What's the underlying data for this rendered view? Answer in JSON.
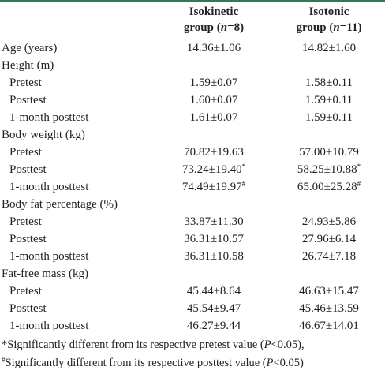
{
  "table": {
    "columns": [
      {
        "line1": "Isokinetic",
        "line2": [
          {
            "text": "group ("
          },
          {
            "text": "n",
            "italic": true
          },
          {
            "text": "=8)"
          }
        ]
      },
      {
        "line1": "Isotonic",
        "line2": [
          {
            "text": "group ("
          },
          {
            "text": "n",
            "italic": true
          },
          {
            "text": "=11)"
          }
        ]
      }
    ],
    "items": [
      {
        "label": "Age (years)",
        "values": [
          "14.36±1.06",
          "14.82±1.60"
        ]
      },
      {
        "label": "Height (m)",
        "rows": [
          {
            "label": "Pretest",
            "values": [
              "1.59±0.07",
              "1.58±0.11"
            ]
          },
          {
            "label": "Posttest",
            "values": [
              "1.60±0.07",
              "1.59±0.11"
            ]
          },
          {
            "label": "1-month posttest",
            "values": [
              "1.61±0.07",
              "1.59±0.11"
            ]
          }
        ]
      },
      {
        "label": "Body weight (kg)",
        "rows": [
          {
            "label": "Pretest",
            "values": [
              "70.82±19.63",
              "57.00±10.79"
            ]
          },
          {
            "label": "Posttest",
            "values": [
              {
                "text": "73.24±19.40",
                "sup": "*"
              },
              {
                "text": "58.25±10.88",
                "sup": "*"
              }
            ]
          },
          {
            "label": "1-month posttest",
            "values": [
              {
                "text": "74.49±19.97",
                "sup": "#"
              },
              {
                "text": "65.00±25.28",
                "sup": "#"
              }
            ]
          }
        ]
      },
      {
        "label": "Body fat percentage (%)",
        "rows": [
          {
            "label": "Pretest",
            "values": [
              "33.87±11.30",
              "24.93±5.86"
            ]
          },
          {
            "label": "Posttest",
            "values": [
              "36.31±10.57",
              "27.96±6.14"
            ]
          },
          {
            "label": "1-month posttest",
            "values": [
              "36.31±10.58",
              "26.74±7.18"
            ]
          }
        ]
      },
      {
        "label": "Fat-free mass (kg)",
        "rows": [
          {
            "label": "Pretest",
            "values": [
              "45.44±8.64",
              "46.63±15.47"
            ]
          },
          {
            "label": "Posttest",
            "values": [
              "45.54±9.47",
              "45.46±13.59"
            ]
          },
          {
            "label": "1-month posttest",
            "values": [
              "46.27±9.44",
              "46.67±14.01"
            ]
          }
        ]
      }
    ],
    "footnotes": [
      [
        {
          "text": "*Significantly different from its respective pretest value ("
        },
        {
          "text": "P",
          "italic": true
        },
        {
          "text": "<0.05),"
        }
      ],
      [
        {
          "text": "#",
          "sup": true
        },
        {
          "text": "Significantly different from its respective posttest value ("
        },
        {
          "text": "P",
          "italic": true
        },
        {
          "text": "<0.05)"
        }
      ]
    ]
  }
}
